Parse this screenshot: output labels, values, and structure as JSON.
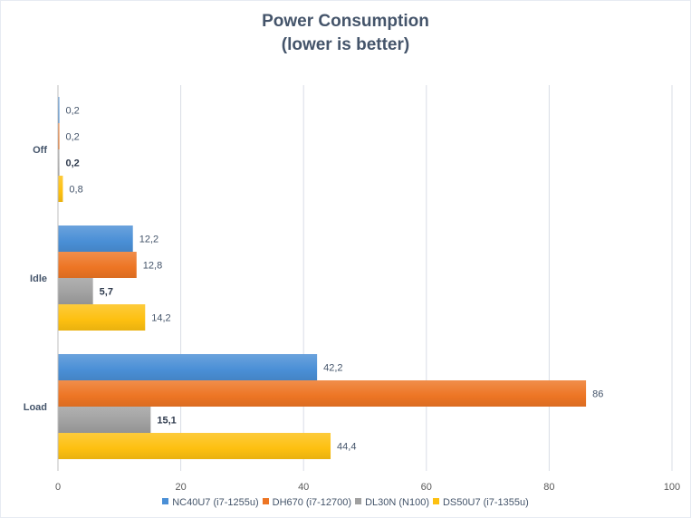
{
  "chart_data": {
    "type": "bar",
    "orientation": "horizontal",
    "title": "Power Consumption",
    "subtitle": "(lower is better)",
    "xlabel": "",
    "ylabel": "",
    "categories": [
      "Off",
      "Idle",
      "Load"
    ],
    "series": [
      {
        "name": "NC40U7 (i7-1255u)",
        "color": "#4a8fd6",
        "values": [
          0.2,
          12.2,
          42.2
        ],
        "labels": [
          "0,2",
          "12,2",
          "42,2"
        ],
        "label_bold": false
      },
      {
        "name": "DH670 (i7-12700)",
        "color": "#ed7524",
        "values": [
          0.2,
          12.8,
          86
        ],
        "labels": [
          "0,2",
          "12,8",
          "86"
        ],
        "label_bold": false
      },
      {
        "name": "DL30N (N100)",
        "color": "#a0a0a0",
        "values": [
          0.2,
          5.7,
          15.1
        ],
        "labels": [
          "0,2",
          "5,7",
          "15,1"
        ],
        "label_bold": true
      },
      {
        "name": "DS50U7 (i7-1355u)",
        "color": "#fdc010",
        "values": [
          0.8,
          14.2,
          44.4
        ],
        "labels": [
          "0,8",
          "14,2",
          "44,4"
        ],
        "label_bold": false
      }
    ],
    "xlim": [
      0,
      100
    ],
    "xticks": [
      0,
      20,
      40,
      60,
      80,
      100
    ],
    "xtick_labels": [
      "0",
      "20",
      "40",
      "60",
      "80",
      "100"
    ],
    "grid": true,
    "legend_position": "bottom"
  }
}
